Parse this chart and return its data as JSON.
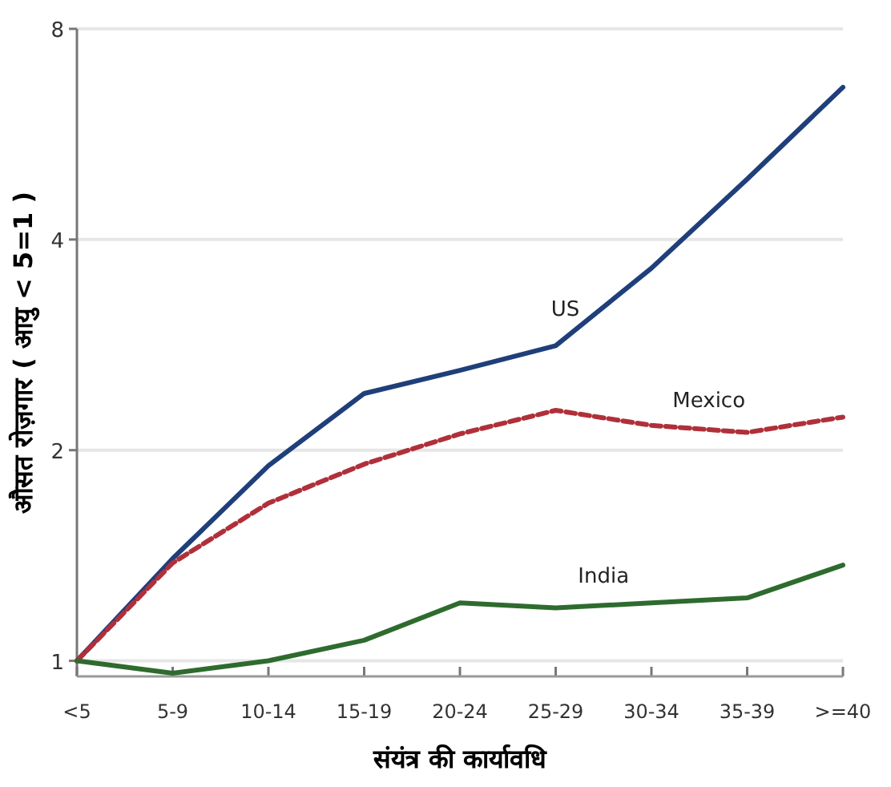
{
  "chart_data": {
    "type": "line",
    "xlabel": "संयंत्र की कार्यावधि",
    "ylabel": "औसत रोज़गार ( आयु < 5=1 )",
    "categories": [
      "<5",
      "5-9",
      "10-14",
      "15-19",
      "20-24",
      "25-29",
      "30-34",
      "35-39",
      ">=40"
    ],
    "log": "y",
    "ylim": [
      0.95,
      8
    ],
    "yticks": [
      1,
      2,
      4,
      8
    ],
    "grid": "y",
    "series": [
      {
        "name": "US",
        "color": "#1f3f7a",
        "line_style": "solid",
        "values": [
          1,
          1.4,
          1.9,
          2.41,
          2.6,
          2.82,
          3.64,
          4.88,
          6.6
        ]
      },
      {
        "name": "Mexico",
        "color": "#b0303a",
        "line_style": "dashed",
        "values": [
          1,
          1.38,
          1.68,
          1.91,
          2.11,
          2.28,
          2.17,
          2.12,
          2.23
        ]
      },
      {
        "name": "India",
        "color": "#2e6b2e",
        "line_style": "solid",
        "values": [
          1,
          0.96,
          1.0,
          1.07,
          1.21,
          1.19,
          1.21,
          1.23,
          1.37
        ]
      }
    ]
  }
}
